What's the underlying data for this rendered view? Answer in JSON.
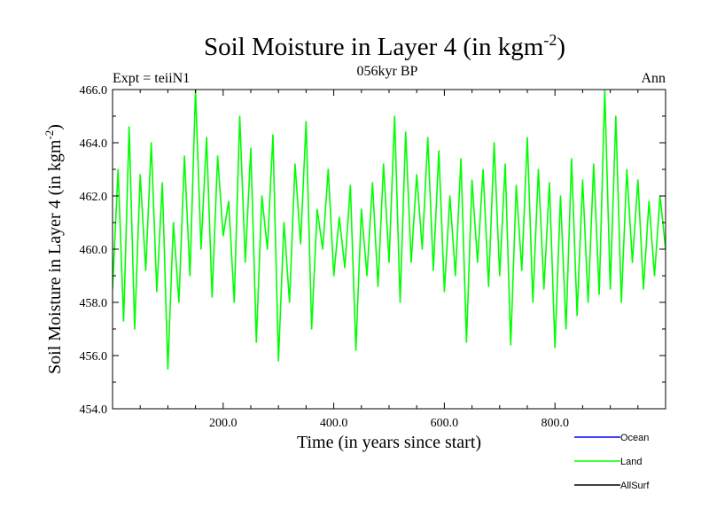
{
  "header": {
    "title": "Soil Moisture in Layer 4 (in kgm",
    "title_sup": "-2",
    "title_close": ")",
    "left_label": "Expt = teiiN1",
    "center_label": "056kyr BP",
    "right_label": "Ann"
  },
  "axes": {
    "xlabel": "Time (in years since start)",
    "ylabel": "Soil Moisture in Layer 4 (in kgm",
    "ylabel_sup": "-2",
    "ylabel_close": ")"
  },
  "legend": {
    "items": [
      {
        "label": "Ocean",
        "color": "#0000ff"
      },
      {
        "label": "Land",
        "color": "#00ff00"
      },
      {
        "label": "AllSurf",
        "color": "#000000"
      }
    ]
  },
  "chart_data": {
    "type": "line",
    "title": "Soil Moisture in Layer 4 (in kgm-2)",
    "xlabel": "Time (in years since start)",
    "ylabel": "Soil Moisture in Layer 4 (in kgm-2)",
    "xlim": [
      0,
      1000
    ],
    "ylim": [
      454.0,
      466.0
    ],
    "x_ticks": [
      200,
      400,
      600,
      800
    ],
    "x_tick_labels": [
      "200.0",
      "400.0",
      "600.0",
      "800.0"
    ],
    "y_ticks": [
      454,
      456,
      458,
      460,
      462,
      464,
      466
    ],
    "y_tick_labels": [
      "454.0",
      "456.0",
      "458.0",
      "460.0",
      "462.0",
      "464.0",
      "466.0"
    ],
    "grid": false,
    "legend_position": "bottom-right",
    "series": [
      {
        "name": "Land",
        "color": "#00ff00",
        "x": [
          0,
          10,
          20,
          30,
          40,
          50,
          60,
          70,
          80,
          90,
          100,
          110,
          120,
          130,
          140,
          150,
          160,
          170,
          180,
          190,
          200,
          210,
          220,
          230,
          240,
          250,
          260,
          270,
          280,
          290,
          300,
          310,
          320,
          330,
          340,
          350,
          360,
          370,
          380,
          390,
          400,
          410,
          420,
          430,
          440,
          450,
          460,
          470,
          480,
          490,
          500,
          510,
          520,
          530,
          540,
          550,
          560,
          570,
          580,
          590,
          600,
          610,
          620,
          630,
          640,
          650,
          660,
          670,
          680,
          690,
          700,
          710,
          720,
          730,
          740,
          750,
          760,
          770,
          780,
          790,
          800,
          810,
          820,
          830,
          840,
          850,
          860,
          870,
          880,
          890,
          900,
          910,
          920,
          930,
          940,
          950,
          960,
          970,
          980,
          990,
          1000
        ],
        "values": [
          458.5,
          463.0,
          457.3,
          464.6,
          457.0,
          462.8,
          459.2,
          464.0,
          458.4,
          462.5,
          455.5,
          461.0,
          458.0,
          463.5,
          459.0,
          466.0,
          460.0,
          464.2,
          458.2,
          463.5,
          460.5,
          461.8,
          458.0,
          465.0,
          459.5,
          463.8,
          456.5,
          462.0,
          460.0,
          464.3,
          455.8,
          461.0,
          458.0,
          463.2,
          460.2,
          464.8,
          457.0,
          461.5,
          460.0,
          463.0,
          459.0,
          461.2,
          459.3,
          462.4,
          456.2,
          461.5,
          459.0,
          462.5,
          458.6,
          463.2,
          459.5,
          465.0,
          458.0,
          464.4,
          459.5,
          462.8,
          460.0,
          464.2,
          459.2,
          463.7,
          458.4,
          462.0,
          459.0,
          463.4,
          456.5,
          462.6,
          459.5,
          463.0,
          458.6,
          464.0,
          459.0,
          463.2,
          456.4,
          462.4,
          459.2,
          464.2,
          458.0,
          463.0,
          458.5,
          462.5,
          456.3,
          462.0,
          457.0,
          463.4,
          457.5,
          462.6,
          458.0,
          463.2,
          458.3,
          466.0,
          458.5,
          465.0,
          458.0,
          463.0,
          459.5,
          462.6,
          458.5,
          461.8,
          459.0,
          462.0,
          460.0
        ]
      }
    ]
  }
}
